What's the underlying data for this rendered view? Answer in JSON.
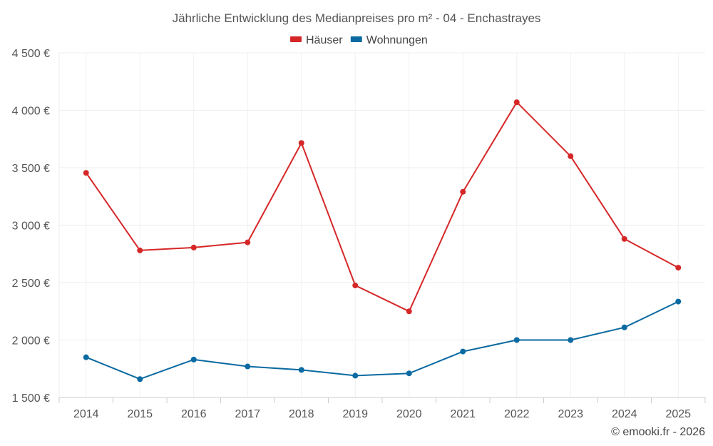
{
  "chart_data": {
    "type": "line",
    "title": "Jährliche Entwicklung des Medianpreises pro m² - 04 - Enchastrayes",
    "categories": [
      "2014",
      "2015",
      "2016",
      "2017",
      "2018",
      "2019",
      "2020",
      "2021",
      "2022",
      "2023",
      "2024",
      "2025"
    ],
    "series": [
      {
        "name": "Häuser",
        "color": "#d62728",
        "values": [
          3455,
          2780,
          2805,
          2850,
          3715,
          2475,
          2250,
          3290,
          4070,
          3600,
          2880,
          2630
        ]
      },
      {
        "name": "Wohnungen",
        "color": "#0a6aa1",
        "values": [
          1850,
          1660,
          1830,
          1770,
          1740,
          1690,
          1710,
          1900,
          2000,
          2000,
          2110,
          2335
        ]
      }
    ],
    "ylim": [
      1500,
      4500
    ],
    "yticks": [
      1500,
      2000,
      2500,
      3000,
      3500,
      4000,
      4500
    ],
    "ytick_labels": [
      "1 500 €",
      "2 000 €",
      "2 500 €",
      "3 000 €",
      "3 500 €",
      "4 000 €",
      "4 500 €"
    ],
    "grid": true,
    "legend_position": "top-center"
  },
  "credit": "© emooki.fr - 2026"
}
